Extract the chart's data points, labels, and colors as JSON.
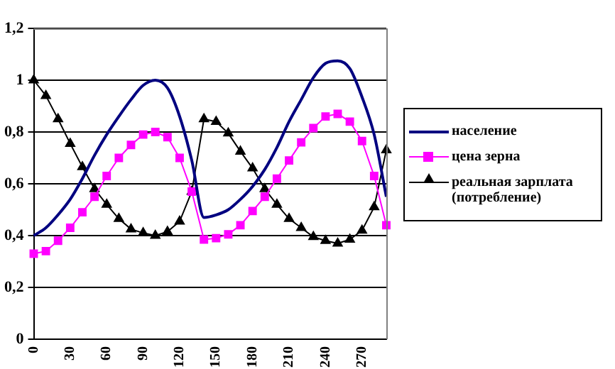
{
  "chart_data": {
    "type": "line",
    "categories": [
      "0",
      null,
      null,
      "30",
      null,
      null,
      "60",
      null,
      null,
      "90",
      null,
      null,
      "120",
      null,
      null,
      "150",
      null,
      null,
      "180",
      null,
      null,
      "210",
      null,
      null,
      "240",
      null,
      null,
      "270",
      null,
      null
    ],
    "series": [
      {
        "name": "население",
        "color": "#000080",
        "marker": "none",
        "values": [
          0.4,
          0.43,
          0.48,
          0.54,
          0.62,
          0.71,
          0.79,
          0.86,
          0.925,
          0.98,
          1.0,
          0.97,
          0.86,
          0.69,
          0.47,
          0.48,
          0.5,
          0.54,
          0.59,
          0.655,
          0.74,
          0.84,
          0.925,
          1.01,
          1.065,
          1.075,
          1.045,
          0.935,
          0.79,
          0.55
        ]
      },
      {
        "name": "цена зерна",
        "color": "#ff00ff",
        "marker": "square",
        "values": [
          0.33,
          0.34,
          0.38,
          0.43,
          0.49,
          0.55,
          0.63,
          0.7,
          0.75,
          0.79,
          0.8,
          0.78,
          0.7,
          0.57,
          0.385,
          0.39,
          0.405,
          0.44,
          0.495,
          0.55,
          0.62,
          0.69,
          0.76,
          0.815,
          0.86,
          0.87,
          0.84,
          0.765,
          0.63,
          0.44
        ]
      },
      {
        "name": "реальная зарплата (потребление)",
        "color": "#000000",
        "marker": "triangle",
        "values": [
          1.0,
          0.94,
          0.85,
          0.755,
          0.665,
          0.58,
          0.52,
          0.465,
          0.425,
          0.41,
          0.4,
          0.415,
          0.455,
          0.57,
          0.85,
          0.84,
          0.795,
          0.725,
          0.66,
          0.58,
          0.52,
          0.465,
          0.43,
          0.395,
          0.38,
          0.37,
          0.385,
          0.42,
          0.51,
          0.73
        ]
      }
    ],
    "ylim": [
      0,
      1.2
    ],
    "yticks": [
      0,
      {
        "value": 0.2,
        "label": "0,2"
      },
      {
        "value": 0.4,
        "label": "0,4"
      },
      {
        "value": 0.6,
        "label": "0,6"
      },
      {
        "value": 0.8,
        "label": "0,8"
      },
      1,
      {
        "value": 1.2,
        "label": "1,2"
      }
    ],
    "grid": "y",
    "legend": "right"
  }
}
